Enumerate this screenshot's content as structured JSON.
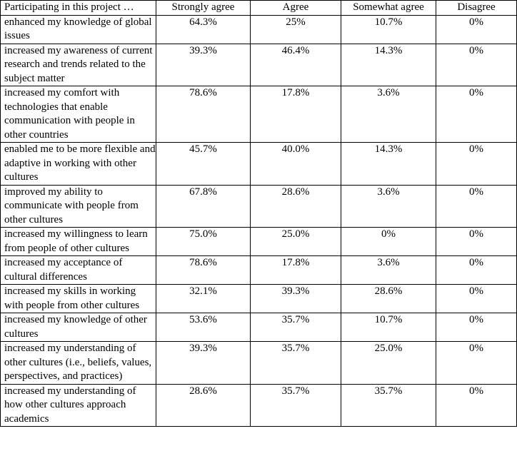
{
  "table": {
    "headers": [
      "Participating in this project …",
      "Strongly agree",
      "Agree",
      "Somewhat agree",
      "Disagree"
    ],
    "rows": [
      {
        "statement": "enhanced my knowledge of global issues",
        "strongly_agree": "64.3%",
        "agree": "25%",
        "somewhat_agree": "10.7%",
        "disagree": "0%"
      },
      {
        "statement": "increased my awareness of current research and trends related to the subject matter",
        "strongly_agree": "39.3%",
        "agree": "46.4%",
        "somewhat_agree": "14.3%",
        "disagree": "0%"
      },
      {
        "statement": "increased my comfort with technologies that enable communication with people in other countries",
        "strongly_agree": "78.6%",
        "agree": "17.8%",
        "somewhat_agree": "3.6%",
        "disagree": "0%"
      },
      {
        "statement": "enabled me to be more flexible and adaptive in working with other cultures",
        "strongly_agree": "45.7%",
        "agree": "40.0%",
        "somewhat_agree": "14.3%",
        "disagree": "0%"
      },
      {
        "statement": "improved my ability to communicate with people from other cultures",
        "strongly_agree": "67.8%",
        "agree": "28.6%",
        "somewhat_agree": "3.6%",
        "disagree": "0%"
      },
      {
        "statement": "increased my willingness to learn from people of other cultures",
        "strongly_agree": "75.0%",
        "agree": "25.0%",
        "somewhat_agree": "0%",
        "disagree": "0%"
      },
      {
        "statement": "increased my acceptance of cultural differences",
        "strongly_agree": "78.6%",
        "agree": "17.8%",
        "somewhat_agree": "3.6%",
        "disagree": "0%"
      },
      {
        "statement": "increased my skills in working with people from other cultures",
        "strongly_agree": "32.1%",
        "agree": "39.3%",
        "somewhat_agree": "28.6%",
        "disagree": "0%"
      },
      {
        "statement": "increased my knowledge of other cultures",
        "strongly_agree": "53.6%",
        "agree": "35.7%",
        "somewhat_agree": "10.7%",
        "disagree": "0%"
      },
      {
        "statement": "increased my understanding of other cultures (i.e., beliefs, values, perspectives, and practices)",
        "strongly_agree": "39.3%",
        "agree": "35.7%",
        "somewhat_agree": "25.0%",
        "disagree": "0%"
      },
      {
        "statement": "increased my understanding of how other cultures approach academics",
        "strongly_agree": "28.6%",
        "agree": "35.7%",
        "somewhat_agree": "35.7%",
        "disagree": "0%"
      }
    ]
  }
}
